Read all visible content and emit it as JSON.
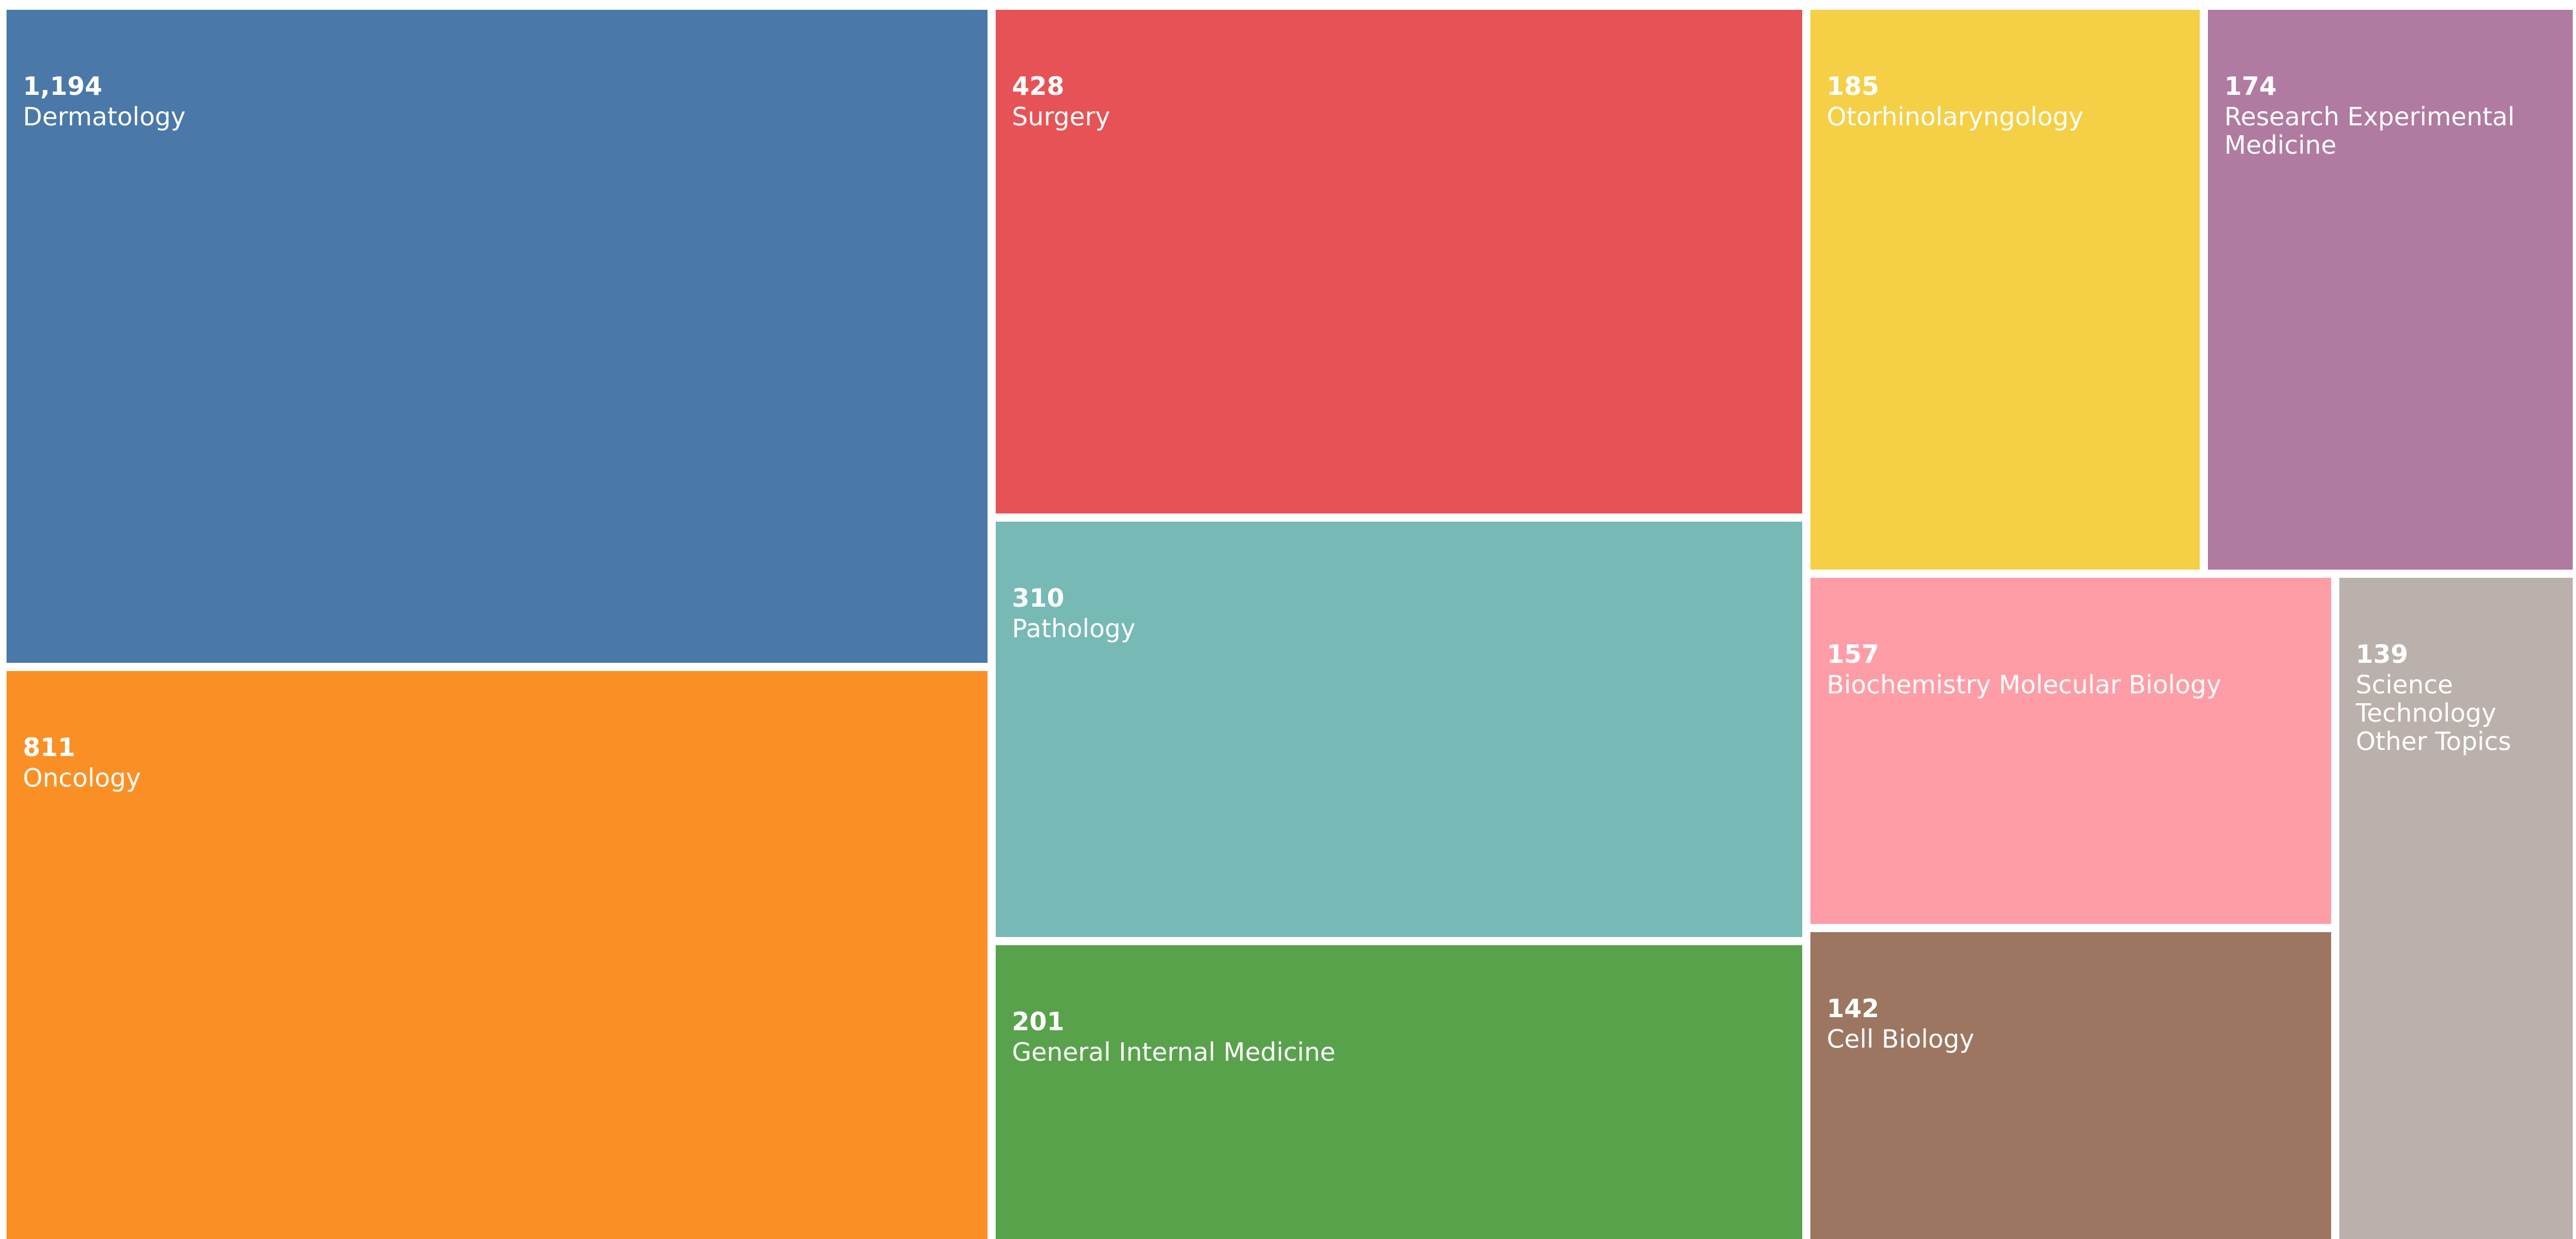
{
  "chart_data": {
    "type": "treemap",
    "categories": [
      "Dermatology",
      "Oncology",
      "Surgery",
      "Pathology",
      "General Internal Medicine",
      "Otorhinolaryngology",
      "Research Experimental Medicine",
      "Biochemistry Molecular Biology",
      "Cell Biology",
      "Science Technology Other Topics"
    ],
    "values": [
      1194,
      811,
      428,
      310,
      201,
      185,
      174,
      157,
      142,
      139
    ],
    "value_labels": [
      "1,194",
      "811",
      "428",
      "310",
      "201",
      "185",
      "174",
      "157",
      "142",
      "139"
    ],
    "colors": [
      "#4a78a8",
      "#fa9025",
      "#e75256",
      "#76b9b5",
      "#58a24c",
      "#f5cf45",
      "#b07aa1",
      "#ff9da7",
      "#9c7660",
      "#bab0ac"
    ]
  }
}
